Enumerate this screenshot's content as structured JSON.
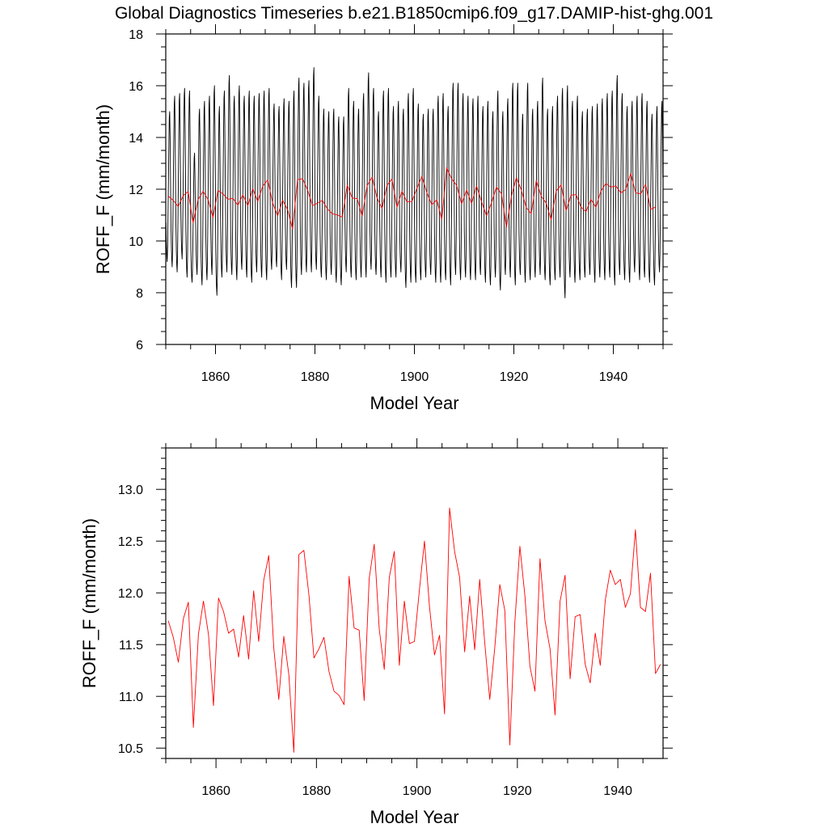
{
  "title": "Global Diagnostics Timeseries b.e21.B1850cmip6.f09_g17.DAMIP-hist-ghg.001",
  "colors": {
    "monthly": "#000000",
    "annual": "#ff0000",
    "frame": "#000000",
    "background": "#ffffff"
  },
  "chart_data": [
    {
      "type": "line",
      "xlabel": "Model Year",
      "ylabel": "ROFF_F (mm/month)",
      "xlim": [
        1850,
        1950
      ],
      "ylim": [
        6,
        18
      ],
      "xticks": [
        1860,
        1880,
        1900,
        1920,
        1940
      ],
      "xtick_labels": [
        "1860",
        "1880",
        "1900",
        "1920",
        "1940"
      ],
      "yticks": [
        6,
        8,
        10,
        12,
        14,
        16,
        18
      ],
      "ytick_labels": [
        "6",
        "8",
        "10",
        "12",
        "14",
        "16",
        "18"
      ],
      "grid": false,
      "series": [
        {
          "key": "monthly",
          "sampling": "monthly",
          "color": "#000000",
          "start_year": 1850,
          "annual_max": [
            15.0,
            15.6,
            15.7,
            15.9,
            15.8,
            13.4,
            15.1,
            15.4,
            15.6,
            16.0,
            15.2,
            15.8,
            16.4,
            15.6,
            16.0,
            15.6,
            15.8,
            15.6,
            15.7,
            15.8,
            15.9,
            15.3,
            15.2,
            15.5,
            15.4,
            15.8,
            16.3,
            16.1,
            16.2,
            16.7,
            15.6,
            15.1,
            15.0,
            15.1,
            14.8,
            14.8,
            15.9,
            15.4,
            15.1,
            15.7,
            16.5,
            15.9,
            15.0,
            15.8,
            15.9,
            15.2,
            15.4,
            15.1,
            15.7,
            15.9,
            15.3,
            14.9,
            15.1,
            15.1,
            15.6,
            15.7,
            15.2,
            16.1,
            16.1,
            15.7,
            15.6,
            15.5,
            15.6,
            15.2,
            15.4,
            15.0,
            15.8,
            15.0,
            15.5,
            16.1,
            16.1,
            14.9,
            16.1,
            15.1,
            15.4,
            16.3,
            15.1,
            15.2,
            15.6,
            15.9,
            16.0,
            15.4,
            15.6,
            15.0,
            15.1,
            15.2,
            15.3,
            15.5,
            15.7,
            15.8,
            16.4,
            15.7,
            15.2,
            15.4,
            15.6,
            15.7,
            15.4,
            14.9,
            15.2,
            15.4
          ],
          "annual_min": [
            9.2,
            9.0,
            8.8,
            9.3,
            8.6,
            8.4,
            8.7,
            8.3,
            8.5,
            8.7,
            7.9,
            8.6,
            8.8,
            8.7,
            8.5,
            8.9,
            8.6,
            8.4,
            8.8,
            8.6,
            8.5,
            8.9,
            9.0,
            8.5,
            8.9,
            8.2,
            8.2,
            8.7,
            8.8,
            8.8,
            8.9,
            8.6,
            8.5,
            8.7,
            8.4,
            8.3,
            8.8,
            8.6,
            8.5,
            8.6,
            8.6,
            8.9,
            8.7,
            8.6,
            8.4,
            8.6,
            8.6,
            8.8,
            8.2,
            8.4,
            8.4,
            8.5,
            8.6,
            8.7,
            8.4,
            8.4,
            8.5,
            8.3,
            8.7,
            8.5,
            8.6,
            8.5,
            8.5,
            8.7,
            8.4,
            8.3,
            8.6,
            8.1,
            8.7,
            8.6,
            8.3,
            8.7,
            8.4,
            8.5,
            8.6,
            8.7,
            8.5,
            8.3,
            8.5,
            8.6,
            7.8,
            8.6,
            8.4,
            8.5,
            8.6,
            8.7,
            8.4,
            8.6,
            8.5,
            8.6,
            8.3,
            8.7,
            8.5,
            8.4,
            8.8,
            8.5,
            8.6,
            8.4,
            8.3,
            8.8
          ]
        },
        {
          "key": "annual",
          "sampling": "annual",
          "color": "#ff0000",
          "start_year": 1850.5,
          "values": [
            11.73,
            11.57,
            11.33,
            11.75,
            11.91,
            10.7,
            11.6,
            11.92,
            11.6,
            10.91,
            11.95,
            11.82,
            11.61,
            11.65,
            11.38,
            11.78,
            11.36,
            12.02,
            11.53,
            12.12,
            12.36,
            11.47,
            10.97,
            11.58,
            11.21,
            10.46,
            12.37,
            12.41,
            11.98,
            11.37,
            11.46,
            11.57,
            11.24,
            11.05,
            11.01,
            10.92,
            12.16,
            11.66,
            11.64,
            10.96,
            12.14,
            12.47,
            11.65,
            11.26,
            12.15,
            12.4,
            11.3,
            11.92,
            11.51,
            11.53,
            12.03,
            12.5,
            11.87,
            11.4,
            11.59,
            10.83,
            12.82,
            12.4,
            12.15,
            11.43,
            11.97,
            11.45,
            12.13,
            11.52,
            10.97,
            11.47,
            12.08,
            11.83,
            10.53,
            11.72,
            12.45,
            11.97,
            11.29,
            11.05,
            12.33,
            11.73,
            11.46,
            10.82,
            11.92,
            12.17,
            11.17,
            11.77,
            11.79,
            11.31,
            11.13,
            11.61,
            11.3,
            11.93,
            12.22,
            12.08,
            12.13,
            11.86,
            11.99,
            12.61,
            11.86,
            11.82,
            12.19,
            11.22,
            11.31
          ]
        }
      ]
    },
    {
      "type": "line",
      "xlabel": "Model Year",
      "ylabel": "ROFF_F (mm/month)",
      "xlim": [
        1850,
        1949
      ],
      "ylim": [
        10.4,
        13.4
      ],
      "xticks": [
        1860,
        1880,
        1900,
        1920,
        1940
      ],
      "xtick_labels": [
        "1860",
        "1880",
        "1900",
        "1920",
        "1940"
      ],
      "yticks": [
        10.5,
        11.0,
        11.5,
        12.0,
        12.5,
        13.0
      ],
      "ytick_labels": [
        "10.5",
        "11.0",
        "11.5",
        "12.0",
        "12.5",
        "13.0"
      ],
      "grid": false,
      "series": [
        {
          "key": "annual",
          "sampling": "annual",
          "color": "#ff0000",
          "start_year": 1850.5,
          "values": [
            11.73,
            11.57,
            11.33,
            11.75,
            11.91,
            10.7,
            11.6,
            11.92,
            11.6,
            10.91,
            11.95,
            11.82,
            11.61,
            11.65,
            11.38,
            11.78,
            11.36,
            12.02,
            11.53,
            12.12,
            12.36,
            11.47,
            10.97,
            11.58,
            11.21,
            10.46,
            12.37,
            12.41,
            11.98,
            11.37,
            11.46,
            11.57,
            11.24,
            11.05,
            11.01,
            10.92,
            12.16,
            11.66,
            11.64,
            10.96,
            12.14,
            12.47,
            11.65,
            11.26,
            12.15,
            12.4,
            11.3,
            11.92,
            11.51,
            11.53,
            12.03,
            12.5,
            11.87,
            11.4,
            11.59,
            10.83,
            12.82,
            12.4,
            12.15,
            11.43,
            11.97,
            11.45,
            12.13,
            11.52,
            10.97,
            11.47,
            12.08,
            11.83,
            10.53,
            11.72,
            12.45,
            11.97,
            11.29,
            11.05,
            12.33,
            11.73,
            11.46,
            10.82,
            11.92,
            12.17,
            11.17,
            11.77,
            11.79,
            11.31,
            11.13,
            11.61,
            11.3,
            11.93,
            12.22,
            12.08,
            12.13,
            11.86,
            11.99,
            12.61,
            11.86,
            11.82,
            12.19,
            11.22,
            11.31
          ]
        }
      ]
    }
  ]
}
